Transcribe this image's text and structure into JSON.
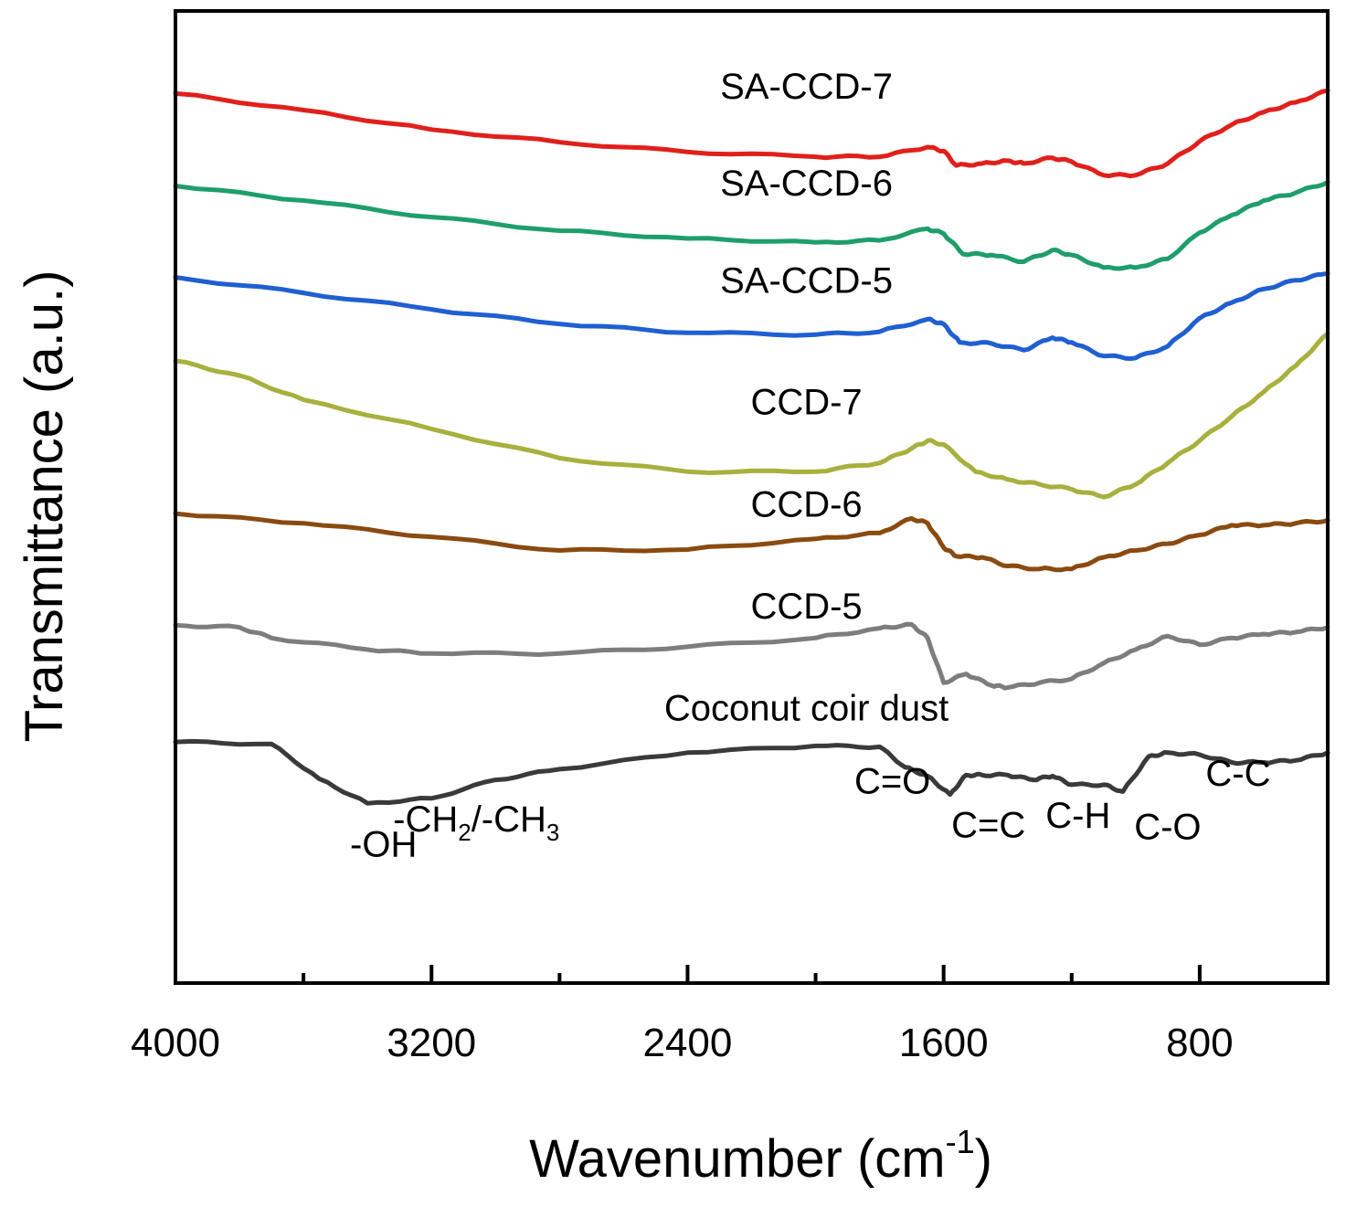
{
  "chart_data": {
    "type": "line",
    "title": "",
    "xlabel": "Wavenumber (cm",
    "xlabel_sup": "-1",
    "xlabel_close": ")",
    "ylabel": "Transmittance (a.u.)",
    "xlim": [
      4000,
      400
    ],
    "ylim": [
      0,
      100
    ],
    "x_ticks": [
      4000,
      3200,
      2400,
      1600,
      800
    ],
    "x_tick_labels": [
      "4000",
      "3200",
      "2400",
      "1600",
      "800"
    ],
    "x_minor_ticks": [
      3600,
      2800,
      2000,
      1200
    ],
    "series": [
      {
        "name": "SA-CCD-7",
        "color": "#e0201b",
        "label_x": 2000,
        "label_y": 91,
        "points": [
          [
            4000,
            91.5
          ],
          [
            3600,
            89.8
          ],
          [
            3200,
            87.8
          ],
          [
            2800,
            86.5
          ],
          [
            2400,
            85.5
          ],
          [
            2000,
            85.0
          ],
          [
            1800,
            85.0
          ],
          [
            1650,
            86.0
          ],
          [
            1600,
            85.6
          ],
          [
            1560,
            84.1
          ],
          [
            1480,
            84.3
          ],
          [
            1400,
            84.6
          ],
          [
            1350,
            84.3
          ],
          [
            1260,
            84.9
          ],
          [
            1200,
            84.5
          ],
          [
            1100,
            83.1
          ],
          [
            1000,
            83.1
          ],
          [
            900,
            84.3
          ],
          [
            800,
            86.6
          ],
          [
            700,
            88.3
          ],
          [
            600,
            89.6
          ],
          [
            500,
            90.6
          ],
          [
            400,
            91.8
          ]
        ]
      },
      {
        "name": "SA-CCD-6",
        "color": "#1e9e6a",
        "label_x": 2000,
        "label_y": 81,
        "points": [
          [
            4000,
            82.0
          ],
          [
            3600,
            80.5
          ],
          [
            3200,
            78.8
          ],
          [
            2800,
            77.4
          ],
          [
            2400,
            76.6
          ],
          [
            2000,
            76.2
          ],
          [
            1800,
            76.4
          ],
          [
            1650,
            77.6
          ],
          [
            1600,
            77.1
          ],
          [
            1540,
            75.0
          ],
          [
            1450,
            74.9
          ],
          [
            1350,
            74.2
          ],
          [
            1260,
            75.4
          ],
          [
            1200,
            74.9
          ],
          [
            1100,
            73.6
          ],
          [
            1000,
            73.6
          ],
          [
            900,
            74.5
          ],
          [
            800,
            77.2
          ],
          [
            700,
            79.0
          ],
          [
            600,
            80.5
          ],
          [
            500,
            81.3
          ],
          [
            400,
            82.4
          ]
        ]
      },
      {
        "name": "SA-CCD-5",
        "color": "#1f5fd1",
        "label_x": 2000,
        "label_y": 71,
        "points": [
          [
            4000,
            72.6
          ],
          [
            3600,
            71.0
          ],
          [
            3200,
            69.3
          ],
          [
            2800,
            67.8
          ],
          [
            2400,
            66.9
          ],
          [
            2000,
            66.7
          ],
          [
            1800,
            67.0
          ],
          [
            1650,
            68.3
          ],
          [
            1600,
            67.8
          ],
          [
            1550,
            65.9
          ],
          [
            1450,
            65.8
          ],
          [
            1350,
            65.1
          ],
          [
            1260,
            66.4
          ],
          [
            1200,
            65.9
          ],
          [
            1100,
            64.5
          ],
          [
            1000,
            64.3
          ],
          [
            900,
            65.5
          ],
          [
            800,
            68.4
          ],
          [
            700,
            70.0
          ],
          [
            600,
            71.4
          ],
          [
            500,
            72.3
          ],
          [
            400,
            73.0
          ]
        ]
      },
      {
        "name": "CCD-7",
        "color": "#a8b03e",
        "label_x": 2000,
        "label_y": 58.5,
        "points": [
          [
            4000,
            64.0
          ],
          [
            3800,
            62.5
          ],
          [
            3600,
            60.0
          ],
          [
            3200,
            57.0
          ],
          [
            2800,
            54.0
          ],
          [
            2400,
            52.6
          ],
          [
            2000,
            52.6
          ],
          [
            1800,
            53.5
          ],
          [
            1700,
            55.0
          ],
          [
            1650,
            55.8
          ],
          [
            1600,
            55.4
          ],
          [
            1500,
            52.6
          ],
          [
            1400,
            51.8
          ],
          [
            1300,
            51.3
          ],
          [
            1200,
            50.8
          ],
          [
            1100,
            50.0
          ],
          [
            1000,
            51.3
          ],
          [
            900,
            53.5
          ],
          [
            800,
            55.8
          ],
          [
            700,
            58.3
          ],
          [
            600,
            60.8
          ],
          [
            500,
            63.5
          ],
          [
            400,
            66.8
          ]
        ]
      },
      {
        "name": "CCD-6",
        "color": "#8a4a10",
        "label_x": 2000,
        "label_y": 48,
        "points": [
          [
            4000,
            48.3
          ],
          [
            3600,
            47.3
          ],
          [
            3200,
            45.9
          ],
          [
            2800,
            44.5
          ],
          [
            2400,
            44.6
          ],
          [
            2000,
            45.7
          ],
          [
            1800,
            46.3
          ],
          [
            1700,
            47.8
          ],
          [
            1650,
            47.3
          ],
          [
            1600,
            44.8
          ],
          [
            1560,
            43.9
          ],
          [
            1480,
            43.8
          ],
          [
            1400,
            42.9
          ],
          [
            1300,
            42.6
          ],
          [
            1200,
            42.6
          ],
          [
            1100,
            43.8
          ],
          [
            1000,
            44.5
          ],
          [
            900,
            45.2
          ],
          [
            800,
            46.1
          ],
          [
            700,
            47.1
          ],
          [
            600,
            47.1
          ],
          [
            500,
            47.3
          ],
          [
            400,
            47.6
          ]
        ]
      },
      {
        "name": "CCD-5",
        "color": "#7d7d7d",
        "label_x": 2000,
        "label_y": 37.5,
        "points": [
          [
            4000,
            36.8
          ],
          [
            3800,
            36.6
          ],
          [
            3700,
            35.5
          ],
          [
            3400,
            34.3
          ],
          [
            3200,
            33.9
          ],
          [
            2800,
            33.9
          ],
          [
            2400,
            34.6
          ],
          [
            2000,
            35.5
          ],
          [
            1800,
            36.5
          ],
          [
            1700,
            36.9
          ],
          [
            1650,
            35.5
          ],
          [
            1600,
            30.9
          ],
          [
            1530,
            31.8
          ],
          [
            1450,
            30.6
          ],
          [
            1400,
            30.4
          ],
          [
            1300,
            30.9
          ],
          [
            1200,
            31.3
          ],
          [
            1100,
            32.9
          ],
          [
            1000,
            34.3
          ],
          [
            900,
            35.7
          ],
          [
            800,
            34.8
          ],
          [
            700,
            35.5
          ],
          [
            600,
            35.9
          ],
          [
            500,
            36.1
          ],
          [
            400,
            36.6
          ]
        ]
      },
      {
        "name": "Coconut coir dust",
        "color": "#3a3a3a",
        "label_x": 2000,
        "label_y": 27,
        "points": [
          [
            4000,
            24.8
          ],
          [
            3700,
            24.6
          ],
          [
            3550,
            21.0
          ],
          [
            3400,
            18.5
          ],
          [
            3200,
            19.0
          ],
          [
            3000,
            20.9
          ],
          [
            2800,
            22.0
          ],
          [
            2400,
            23.7
          ],
          [
            2000,
            24.4
          ],
          [
            1800,
            24.3
          ],
          [
            1720,
            22.2
          ],
          [
            1650,
            21.3
          ],
          [
            1580,
            19.4
          ],
          [
            1530,
            21.4
          ],
          [
            1480,
            21.4
          ],
          [
            1400,
            21.4
          ],
          [
            1320,
            20.9
          ],
          [
            1260,
            21.3
          ],
          [
            1200,
            20.4
          ],
          [
            1100,
            20.4
          ],
          [
            1040,
            19.7
          ],
          [
            960,
            23.3
          ],
          [
            900,
            23.7
          ],
          [
            800,
            23.5
          ],
          [
            700,
            22.7
          ],
          [
            600,
            22.7
          ],
          [
            500,
            22.9
          ],
          [
            400,
            23.7
          ]
        ]
      }
    ],
    "annotations": [
      {
        "text": "-OH",
        "x": 3350,
        "y": 13.0
      },
      {
        "text": "C=O",
        "x": 1760,
        "y": 19.5
      },
      {
        "text": "C=C",
        "x": 1460,
        "y": 15.0
      },
      {
        "text": "C-H",
        "x": 1180,
        "y": 16.0
      },
      {
        "text": "C-O",
        "x": 900,
        "y": 14.8
      },
      {
        "text": "C-C",
        "x": 680,
        "y": 20.3
      }
    ],
    "annotation_chem": {
      "x": 3060,
      "y": 15.6,
      "part1": "-CH",
      "sub1": "2",
      "part2": "/-CH",
      "sub2": "3"
    }
  }
}
